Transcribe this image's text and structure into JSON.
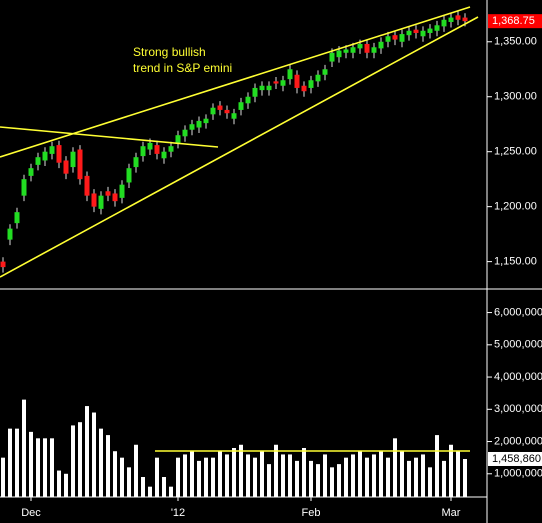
{
  "chart_data": [
    {
      "type": "candlestick",
      "annotation": [
        "Strong bullish",
        "trend in S&P emini"
      ],
      "open": [
        1150,
        1170,
        1185,
        1210,
        1228,
        1238,
        1242,
        1248,
        1256,
        1242,
        1236,
        1252,
        1228,
        1212,
        1198,
        1214,
        1212,
        1208,
        1222,
        1236,
        1246,
        1252,
        1256,
        1244,
        1250,
        1258,
        1264,
        1270,
        1272,
        1276,
        1284,
        1292,
        1288,
        1280,
        1288,
        1294,
        1300,
        1306,
        1306,
        1314,
        1310,
        1316,
        1320,
        1310,
        1308,
        1314,
        1320,
        1332,
        1336,
        1340,
        1340,
        1344,
        1348,
        1340,
        1344,
        1350,
        1356,
        1350,
        1356,
        1361,
        1355,
        1358,
        1360,
        1364,
        1368,
        1374,
        1372
      ],
      "high": [
        1154,
        1184,
        1199,
        1229,
        1239,
        1249,
        1254,
        1259,
        1260,
        1246,
        1254,
        1256,
        1232,
        1216,
        1214,
        1218,
        1216,
        1224,
        1239,
        1249,
        1259,
        1262,
        1260,
        1254,
        1259,
        1269,
        1274,
        1279,
        1282,
        1284,
        1294,
        1296,
        1292,
        1289,
        1299,
        1304,
        1312,
        1314,
        1314,
        1318,
        1319,
        1329,
        1324,
        1314,
        1319,
        1324,
        1329,
        1344,
        1346,
        1347,
        1349,
        1352,
        1352,
        1349,
        1354,
        1359,
        1360,
        1361,
        1364,
        1365,
        1364,
        1366,
        1369,
        1374,
        1376,
        1378,
        1376
      ],
      "low": [
        1140,
        1165,
        1180,
        1205,
        1223,
        1233,
        1237,
        1243,
        1235,
        1225,
        1231,
        1220,
        1205,
        1195,
        1193,
        1205,
        1200,
        1203,
        1217,
        1231,
        1241,
        1247,
        1243,
        1239,
        1245,
        1253,
        1259,
        1265,
        1267,
        1271,
        1279,
        1283,
        1280,
        1275,
        1283,
        1289,
        1295,
        1301,
        1301,
        1307,
        1305,
        1311,
        1303,
        1300,
        1303,
        1309,
        1315,
        1327,
        1331,
        1335,
        1335,
        1339,
        1335,
        1335,
        1339,
        1345,
        1347,
        1345,
        1351,
        1353,
        1350,
        1353,
        1355,
        1359,
        1363,
        1365,
        1364
      ],
      "close": [
        1145,
        1180,
        1195,
        1225,
        1235,
        1245,
        1250,
        1255,
        1240,
        1230,
        1250,
        1225,
        1210,
        1200,
        1210,
        1210,
        1205,
        1220,
        1235,
        1245,
        1255,
        1258,
        1248,
        1250,
        1255,
        1265,
        1270,
        1275,
        1278,
        1280,
        1290,
        1288,
        1285,
        1285,
        1295,
        1300,
        1308,
        1310,
        1310,
        1312,
        1315,
        1325,
        1308,
        1305,
        1315,
        1320,
        1325,
        1340,
        1342,
        1343,
        1345,
        1348,
        1340,
        1345,
        1350,
        1355,
        1352,
        1357,
        1360,
        1358,
        1360,
        1362,
        1365,
        1370,
        1372,
        1370,
        1368.75
      ],
      "up_color": "#22dd22",
      "down_color": "#ff1a1a",
      "last_label": "1,368.75",
      "ylim": [
        1126,
        1388
      ],
      "yticks": [
        {
          "value": 1150,
          "label": "1,150.00"
        },
        {
          "value": 1200,
          "label": "1,200.00"
        },
        {
          "value": 1250,
          "label": "1,250.00"
        },
        {
          "value": 1300,
          "label": "1,300.00"
        },
        {
          "value": 1350,
          "label": "1,350.00"
        }
      ]
    },
    {
      "type": "bar",
      "categories": [
        null,
        null,
        null,
        null,
        "Dec",
        null,
        null,
        null,
        null,
        null,
        null,
        null,
        null,
        null,
        null,
        null,
        null,
        null,
        null,
        null,
        null,
        null,
        null,
        null,
        null,
        "'12",
        null,
        null,
        null,
        null,
        null,
        null,
        null,
        null,
        null,
        null,
        null,
        null,
        null,
        null,
        null,
        null,
        null,
        null,
        "Feb",
        null,
        null,
        null,
        null,
        null,
        null,
        null,
        null,
        null,
        null,
        null,
        null,
        null,
        null,
        null,
        null,
        null,
        null,
        null,
        "Mar",
        null,
        null
      ],
      "values": [
        1500000,
        2400000,
        2400000,
        3300000,
        2300000,
        2100000,
        2100000,
        2100000,
        1100000,
        1000000,
        2500000,
        2600000,
        3100000,
        2900000,
        2400000,
        2200000,
        1700000,
        1500000,
        1200000,
        1900000,
        900000,
        600000,
        1500000,
        900000,
        600000,
        1500000,
        1600000,
        1700000,
        1400000,
        1500000,
        1500000,
        1700000,
        1600000,
        1800000,
        1900000,
        1600000,
        1500000,
        1700000,
        1300000,
        1900000,
        1600000,
        1600000,
        1400000,
        1800000,
        1400000,
        1300000,
        1600000,
        1200000,
        1300000,
        1500000,
        1600000,
        1700000,
        1500000,
        1600000,
        1700000,
        1500000,
        2100000,
        1700000,
        1400000,
        1500000,
        1600000,
        1200000,
        2200000,
        1400000,
        1900000,
        1700000,
        1458860
      ],
      "color": "#ffffff",
      "last_label": "1,458,860",
      "ylim": [
        280000,
        6700000
      ],
      "yticks": [
        {
          "value": 1000000,
          "label": "1,000,000"
        },
        {
          "value": 2000000,
          "label": "2,000,000"
        },
        {
          "value": 3000000,
          "label": "3,000,000"
        },
        {
          "value": 4000000,
          "label": "4,000,000"
        },
        {
          "value": 5000000,
          "label": "5,000,000"
        },
        {
          "value": 6000000,
          "label": "6,000,000"
        }
      ]
    }
  ]
}
